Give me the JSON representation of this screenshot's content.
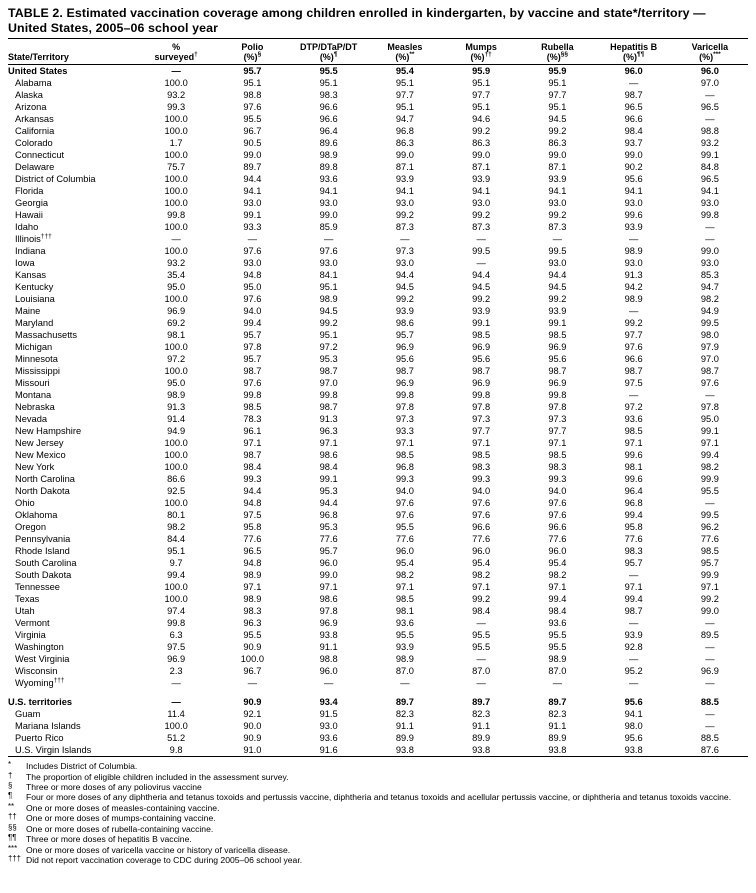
{
  "title": "TABLE 2. Estimated vaccination coverage among children enrolled in kindergarten, by vaccine and state*/territory — United States, 2005–06 school year",
  "table": {
    "columns": [
      {
        "key": "state",
        "line1": "State/Territory",
        "line2": "",
        "sup": ""
      },
      {
        "key": "pct-surveyed",
        "line1": "%",
        "line2": "surveyed",
        "sup": "†"
      },
      {
        "key": "polio",
        "line1": "Polio",
        "line2": "(%)",
        "sup": "§"
      },
      {
        "key": "dtp",
        "line1": "DTP/DTaP/DT",
        "line2": "(%)",
        "sup": "¶"
      },
      {
        "key": "measles",
        "line1": "Measles",
        "line2": "(%)",
        "sup": "**"
      },
      {
        "key": "mumps",
        "line1": "Mumps",
        "line2": "(%)",
        "sup": "††"
      },
      {
        "key": "rubella",
        "line1": "Rubella",
        "line2": "(%)",
        "sup": "§§"
      },
      {
        "key": "hepatitis-b",
        "line1": "Hepatitis B",
        "line2": "(%)",
        "sup": "¶¶"
      },
      {
        "key": "varicella",
        "line1": "Varicella",
        "line2": "(%)",
        "sup": "***"
      }
    ],
    "rows": [
      {
        "name": "United States",
        "bold": true,
        "values": [
          "—",
          "95.7",
          "95.5",
          "95.4",
          "95.9",
          "95.9",
          "96.0",
          "96.0"
        ]
      },
      {
        "name": "Alabama",
        "values": [
          "100.0",
          "95.1",
          "95.1",
          "95.1",
          "95.1",
          "95.1",
          "—",
          "97.0"
        ]
      },
      {
        "name": "Alaska",
        "values": [
          "93.2",
          "98.8",
          "98.3",
          "97.7",
          "97.7",
          "97.7",
          "98.7",
          "—"
        ]
      },
      {
        "name": "Arizona",
        "values": [
          "99.3",
          "97.6",
          "96.6",
          "95.1",
          "95.1",
          "95.1",
          "96.5",
          "96.5"
        ]
      },
      {
        "name": "Arkansas",
        "values": [
          "100.0",
          "95.5",
          "96.6",
          "94.7",
          "94.6",
          "94.5",
          "96.6",
          "—"
        ]
      },
      {
        "name": "California",
        "values": [
          "100.0",
          "96.7",
          "96.4",
          "96.8",
          "99.2",
          "99.2",
          "98.4",
          "98.8"
        ]
      },
      {
        "name": "Colorado",
        "values": [
          "1.7",
          "90.5",
          "89.6",
          "86.3",
          "86.3",
          "86.3",
          "93.7",
          "93.2"
        ]
      },
      {
        "name": "Connecticut",
        "values": [
          "100.0",
          "99.0",
          "98.9",
          "99.0",
          "99.0",
          "99.0",
          "99.0",
          "99.1"
        ]
      },
      {
        "name": "Delaware",
        "values": [
          "75.7",
          "89.7",
          "89.8",
          "87.1",
          "87.1",
          "87.1",
          "90.2",
          "84.8"
        ]
      },
      {
        "name": "District of Columbia",
        "values": [
          "100.0",
          "94.4",
          "93.6",
          "93.9",
          "93.9",
          "93.9",
          "95.6",
          "96.5"
        ]
      },
      {
        "name": "Florida",
        "values": [
          "100.0",
          "94.1",
          "94.1",
          "94.1",
          "94.1",
          "94.1",
          "94.1",
          "94.1"
        ]
      },
      {
        "name": "Georgia",
        "values": [
          "100.0",
          "93.0",
          "93.0",
          "93.0",
          "93.0",
          "93.0",
          "93.0",
          "93.0"
        ]
      },
      {
        "name": "Hawaii",
        "values": [
          "99.8",
          "99.1",
          "99.0",
          "99.2",
          "99.2",
          "99.2",
          "99.6",
          "99.8"
        ]
      },
      {
        "name": "Idaho",
        "values": [
          "100.0",
          "93.3",
          "85.9",
          "87.3",
          "87.3",
          "87.3",
          "93.9",
          "—"
        ]
      },
      {
        "name": "Illinois",
        "sup": "†††",
        "values": [
          "—",
          "—",
          "—",
          "—",
          "—",
          "—",
          "—",
          "—"
        ]
      },
      {
        "name": "Indiana",
        "values": [
          "100.0",
          "97.6",
          "97.6",
          "97.3",
          "99.5",
          "99.5",
          "98.9",
          "99.0"
        ]
      },
      {
        "name": "Iowa",
        "values": [
          "93.2",
          "93.0",
          "93.0",
          "93.0",
          "—",
          "93.0",
          "93.0",
          "93.0"
        ]
      },
      {
        "name": "Kansas",
        "values": [
          "35.4",
          "94.8",
          "84.1",
          "94.4",
          "94.4",
          "94.4",
          "91.3",
          "85.3"
        ]
      },
      {
        "name": "Kentucky",
        "values": [
          "95.0",
          "95.0",
          "95.1",
          "94.5",
          "94.5",
          "94.5",
          "94.2",
          "94.7"
        ]
      },
      {
        "name": "Louisiana",
        "values": [
          "100.0",
          "97.6",
          "98.9",
          "99.2",
          "99.2",
          "99.2",
          "98.9",
          "98.2"
        ]
      },
      {
        "name": "Maine",
        "values": [
          "96.9",
          "94.0",
          "94.5",
          "93.9",
          "93.9",
          "93.9",
          "—",
          "94.9"
        ]
      },
      {
        "name": "Maryland",
        "values": [
          "69.2",
          "99.4",
          "99.2",
          "98.6",
          "99.1",
          "99.1",
          "99.2",
          "99.5"
        ]
      },
      {
        "name": "Massachusetts",
        "values": [
          "98.1",
          "95.7",
          "95.1",
          "95.7",
          "98.5",
          "98.5",
          "97.7",
          "98.0"
        ]
      },
      {
        "name": "Michigan",
        "values": [
          "100.0",
          "97.8",
          "97.2",
          "96.9",
          "96.9",
          "96.9",
          "97.6",
          "97.9"
        ]
      },
      {
        "name": "Minnesota",
        "values": [
          "97.2",
          "95.7",
          "95.3",
          "95.6",
          "95.6",
          "95.6",
          "96.6",
          "97.0"
        ]
      },
      {
        "name": "Mississippi",
        "values": [
          "100.0",
          "98.7",
          "98.7",
          "98.7",
          "98.7",
          "98.7",
          "98.7",
          "98.7"
        ]
      },
      {
        "name": "Missouri",
        "values": [
          "95.0",
          "97.6",
          "97.0",
          "96.9",
          "96.9",
          "96.9",
          "97.5",
          "97.6"
        ]
      },
      {
        "name": "Montana",
        "values": [
          "98.9",
          "99.8",
          "99.8",
          "99.8",
          "99.8",
          "99.8",
          "—",
          "—"
        ]
      },
      {
        "name": "Nebraska",
        "values": [
          "91.3",
          "98.5",
          "98.7",
          "97.8",
          "97.8",
          "97.8",
          "97.2",
          "97.8"
        ]
      },
      {
        "name": "Nevada",
        "values": [
          "91.4",
          "78.3",
          "91.3",
          "97.3",
          "97.3",
          "97.3",
          "93.6",
          "95.0"
        ]
      },
      {
        "name": "New Hampshire",
        "values": [
          "94.9",
          "96.1",
          "96.3",
          "93.3",
          "97.7",
          "97.7",
          "98.5",
          "99.1"
        ]
      },
      {
        "name": "New Jersey",
        "values": [
          "100.0",
          "97.1",
          "97.1",
          "97.1",
          "97.1",
          "97.1",
          "97.1",
          "97.1"
        ]
      },
      {
        "name": "New Mexico",
        "values": [
          "100.0",
          "98.7",
          "98.6",
          "98.5",
          "98.5",
          "98.5",
          "99.6",
          "99.4"
        ]
      },
      {
        "name": "New York",
        "values": [
          "100.0",
          "98.4",
          "98.4",
          "96.8",
          "98.3",
          "98.3",
          "98.1",
          "98.2"
        ]
      },
      {
        "name": "North Carolina",
        "values": [
          "86.6",
          "99.3",
          "99.1",
          "99.3",
          "99.3",
          "99.3",
          "99.6",
          "99.9"
        ]
      },
      {
        "name": "North Dakota",
        "values": [
          "92.5",
          "94.4",
          "95.3",
          "94.0",
          "94.0",
          "94.0",
          "96.4",
          "95.5"
        ]
      },
      {
        "name": "Ohio",
        "values": [
          "100.0",
          "94.8",
          "94.4",
          "97.6",
          "97.6",
          "97.6",
          "96.8",
          "—"
        ]
      },
      {
        "name": "Oklahoma",
        "values": [
          "80.1",
          "97.5",
          "96.8",
          "97.6",
          "97.6",
          "97.6",
          "99.4",
          "99.5"
        ]
      },
      {
        "name": "Oregon",
        "values": [
          "98.2",
          "95.8",
          "95.3",
          "95.5",
          "96.6",
          "96.6",
          "95.8",
          "96.2"
        ]
      },
      {
        "name": "Pennsylvania",
        "values": [
          "84.4",
          "77.6",
          "77.6",
          "77.6",
          "77.6",
          "77.6",
          "77.6",
          "77.6"
        ]
      },
      {
        "name": "Rhode Island",
        "values": [
          "95.1",
          "96.5",
          "95.7",
          "96.0",
          "96.0",
          "96.0",
          "98.3",
          "98.5"
        ]
      },
      {
        "name": "South Carolina",
        "values": [
          "9.7",
          "94.8",
          "96.0",
          "95.4",
          "95.4",
          "95.4",
          "95.7",
          "95.7"
        ]
      },
      {
        "name": "South Dakota",
        "values": [
          "99.4",
          "98.9",
          "99.0",
          "98.2",
          "98.2",
          "98.2",
          "—",
          "99.9"
        ]
      },
      {
        "name": "Tennessee",
        "values": [
          "100.0",
          "97.1",
          "97.1",
          "97.1",
          "97.1",
          "97.1",
          "97.1",
          "97.1"
        ]
      },
      {
        "name": "Texas",
        "values": [
          "100.0",
          "98.9",
          "98.6",
          "98.5",
          "99.2",
          "99.4",
          "99.4",
          "99.2"
        ]
      },
      {
        "name": "Utah",
        "values": [
          "97.4",
          "98.3",
          "97.8",
          "98.1",
          "98.4",
          "98.4",
          "98.7",
          "99.0"
        ]
      },
      {
        "name": "Vermont",
        "values": [
          "99.8",
          "96.3",
          "96.9",
          "93.6",
          "—",
          "93.6",
          "—",
          "—"
        ]
      },
      {
        "name": "Virginia",
        "values": [
          "6.3",
          "95.5",
          "93.8",
          "95.5",
          "95.5",
          "95.5",
          "93.9",
          "89.5"
        ]
      },
      {
        "name": "Washington",
        "values": [
          "97.5",
          "90.9",
          "91.1",
          "93.9",
          "95.5",
          "95.5",
          "92.8",
          "—"
        ]
      },
      {
        "name": "West Virginia",
        "values": [
          "96.9",
          "100.0",
          "98.8",
          "98.9",
          "—",
          "98.9",
          "—",
          "—"
        ]
      },
      {
        "name": "Wisconsin",
        "values": [
          "2.3",
          "96.7",
          "96.0",
          "87.0",
          "87.0",
          "87.0",
          "95.2",
          "96.9"
        ]
      },
      {
        "name": "Wyoming",
        "sup": "†††",
        "values": [
          "—",
          "—",
          "—",
          "—",
          "—",
          "—",
          "—",
          "—"
        ]
      },
      {
        "spacer": true
      },
      {
        "name": "U.S. territories",
        "bold": true,
        "values": [
          "—",
          "90.9",
          "93.4",
          "89.7",
          "89.7",
          "89.7",
          "95.6",
          "88.5"
        ]
      },
      {
        "name": "Guam",
        "values": [
          "11.4",
          "92.1",
          "91.5",
          "82.3",
          "82.3",
          "82.3",
          "94.1",
          "—"
        ]
      },
      {
        "name": "Mariana Islands",
        "values": [
          "100.0",
          "90.0",
          "93.0",
          "91.1",
          "91.1",
          "91.1",
          "98.0",
          "—"
        ]
      },
      {
        "name": "Puerto Rico",
        "values": [
          "51.2",
          "90.9",
          "93.6",
          "89.9",
          "89.9",
          "89.9",
          "95.6",
          "88.5"
        ]
      },
      {
        "name": "U.S. Virgin Islands",
        "values": [
          "9.8",
          "91.0",
          "91.6",
          "93.8",
          "93.8",
          "93.8",
          "93.8",
          "87.6"
        ]
      }
    ]
  },
  "footnotes": [
    {
      "marker": "*",
      "text": "Includes District of Columbia."
    },
    {
      "marker": "†",
      "text": "The proportion of eligible children included in the assessment survey."
    },
    {
      "marker": "§",
      "text": "Three or more doses of any poliovirus vaccine"
    },
    {
      "marker": "¶",
      "text": "Four or more doses of any diphtheria and tetanus toxoids and pertussis vaccine, diphtheria and tetanus toxoids and acellular pertussis vaccine, or diphtheria and tetanus toxoids vaccine."
    },
    {
      "marker": "**",
      "text": "One or more doses of measles-containing vaccine."
    },
    {
      "marker": "††",
      "text": "One or more doses of mumps-containing vaccine."
    },
    {
      "marker": "§§",
      "text": "One or more doses of rubella-containing vaccine."
    },
    {
      "marker": "¶¶",
      "text": "Three or more doses of hepatitis B vaccine."
    },
    {
      "marker": "***",
      "text": "One or more doses of varicella vaccine or history of varicella disease."
    },
    {
      "marker": "†††",
      "text": "Did not report vaccination coverage to CDC during 2005–06 school year."
    }
  ]
}
